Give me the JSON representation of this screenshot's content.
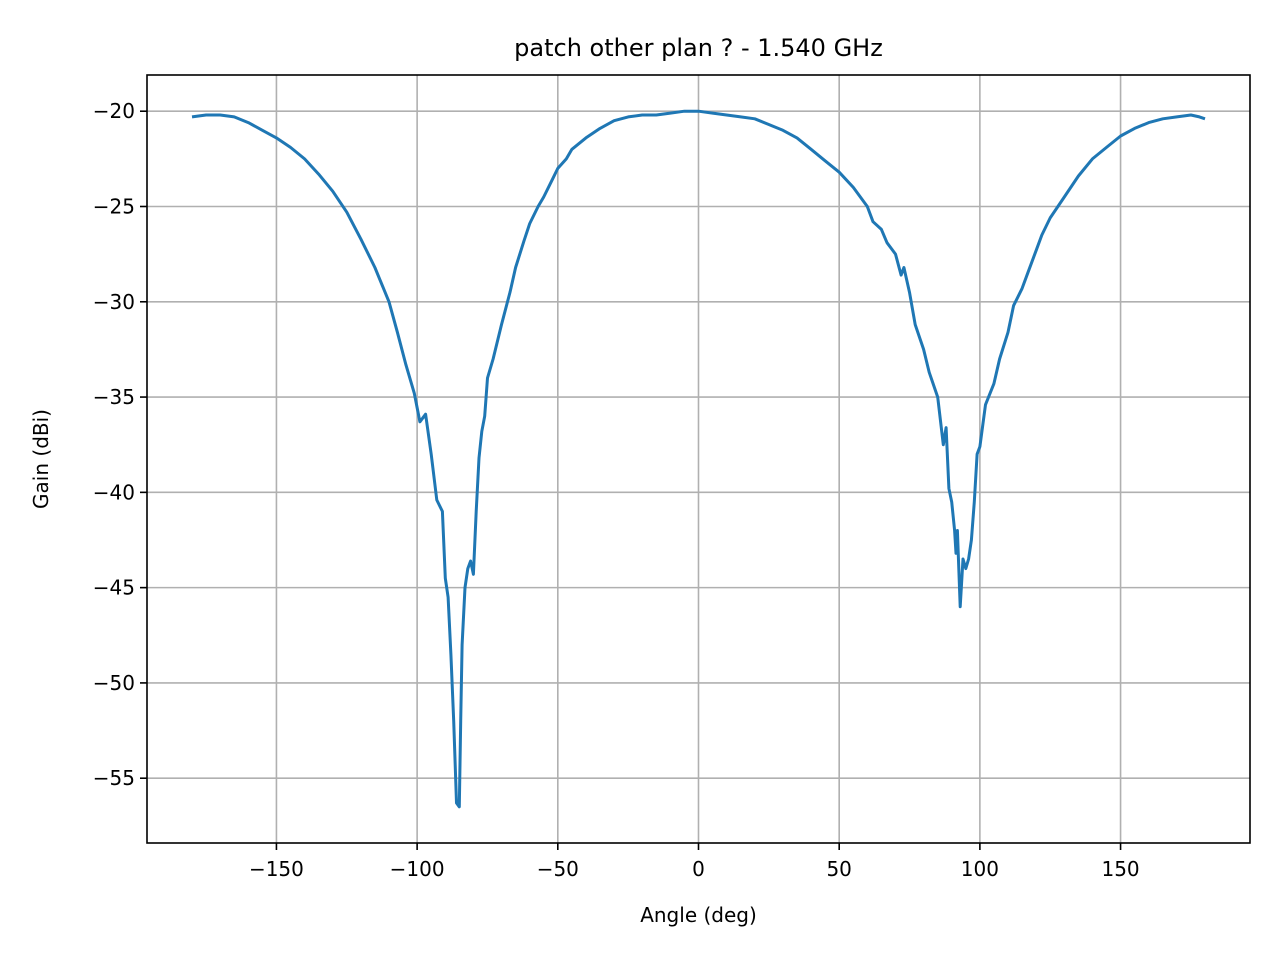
{
  "chart_data": {
    "type": "line",
    "title": "patch other plan ? - 1.540 GHz",
    "xlabel": "Angle (deg)",
    "ylabel": "Gain (dBi)",
    "xlim": [
      -196,
      196
    ],
    "ylim": [
      -58.4,
      -18.1
    ],
    "xticks": [
      -150,
      -100,
      -50,
      0,
      50,
      100,
      150
    ],
    "xtick_labels": [
      "−150",
      "−100",
      "−50",
      "0",
      "50",
      "100",
      "150"
    ],
    "yticks": [
      -20,
      -25,
      -30,
      -35,
      -40,
      -45,
      -50,
      -55
    ],
    "ytick_labels": [
      "−20",
      "−25",
      "−30",
      "−35",
      "−40",
      "−45",
      "−50",
      "−55"
    ],
    "grid": true,
    "color": "#1f77b4",
    "series": [
      {
        "x": [
          -180,
          -175,
          -170,
          -165,
          -160,
          -155,
          -150,
          -145,
          -140,
          -135,
          -130,
          -125,
          -120,
          -115,
          -110,
          -107,
          -104,
          -101,
          -99,
          -97,
          -95,
          -93,
          -91,
          -90,
          -89,
          -88,
          -87,
          -86,
          -85,
          -84.5,
          -84,
          -83,
          -82,
          -81,
          -80,
          -79,
          -78,
          -77,
          -76,
          -75,
          -73,
          -70,
          -67,
          -65,
          -62,
          -60,
          -57,
          -55,
          -52,
          -50,
          -47,
          -45,
          -40,
          -35,
          -30,
          -25,
          -20,
          -15,
          -10,
          -5,
          0,
          5,
          10,
          15,
          20,
          25,
          30,
          35,
          40,
          45,
          50,
          55,
          60,
          62,
          65,
          67,
          70,
          72,
          73,
          75,
          77,
          80,
          82,
          85,
          87,
          88,
          89,
          90,
          91,
          91.5,
          92,
          93,
          94,
          95,
          96,
          97,
          98,
          99,
          100,
          102,
          105,
          107,
          110,
          112,
          115,
          117,
          120,
          122,
          125,
          130,
          135,
          140,
          145,
          150,
          155,
          160,
          165,
          170,
          175,
          178,
          180
        ],
        "y": [
          -20.3,
          -20.2,
          -20.2,
          -20.3,
          -20.6,
          -21.0,
          -21.4,
          -21.9,
          -22.5,
          -23.3,
          -24.2,
          -25.3,
          -26.7,
          -28.2,
          -30.0,
          -31.6,
          -33.3,
          -34.8,
          -36.3,
          -35.9,
          -38.0,
          -40.4,
          -41.0,
          -44.5,
          -45.5,
          -48.5,
          -52.0,
          -56.3,
          -56.5,
          -52.0,
          -48.0,
          -45.0,
          -44.0,
          -43.6,
          -44.3,
          -41.0,
          -38.2,
          -36.8,
          -36.0,
          -34.0,
          -33.0,
          -31.2,
          -29.5,
          -28.2,
          -26.8,
          -25.9,
          -25.0,
          -24.5,
          -23.6,
          -23.0,
          -22.5,
          -22.0,
          -21.4,
          -20.9,
          -20.5,
          -20.3,
          -20.2,
          -20.2,
          -20.1,
          -20.0,
          -20.0,
          -20.1,
          -20.2,
          -20.3,
          -20.4,
          -20.7,
          -21.0,
          -21.4,
          -22.0,
          -22.6,
          -23.2,
          -24.0,
          -25.0,
          -25.8,
          -26.2,
          -26.9,
          -27.5,
          -28.6,
          -28.2,
          -29.5,
          -31.2,
          -32.5,
          -33.7,
          -35.0,
          -37.5,
          -36.6,
          -39.8,
          -40.5,
          -42.0,
          -43.2,
          -42.0,
          -46.0,
          -43.5,
          -44.0,
          -43.5,
          -42.5,
          -40.5,
          -38.0,
          -37.6,
          -35.4,
          -34.3,
          -33.0,
          -31.6,
          -30.2,
          -29.3,
          -28.5,
          -27.3,
          -26.5,
          -25.6,
          -24.5,
          -23.4,
          -22.5,
          -21.9,
          -21.3,
          -20.9,
          -20.6,
          -20.4,
          -20.3,
          -20.2,
          -20.3,
          -20.4
        ]
      }
    ]
  }
}
